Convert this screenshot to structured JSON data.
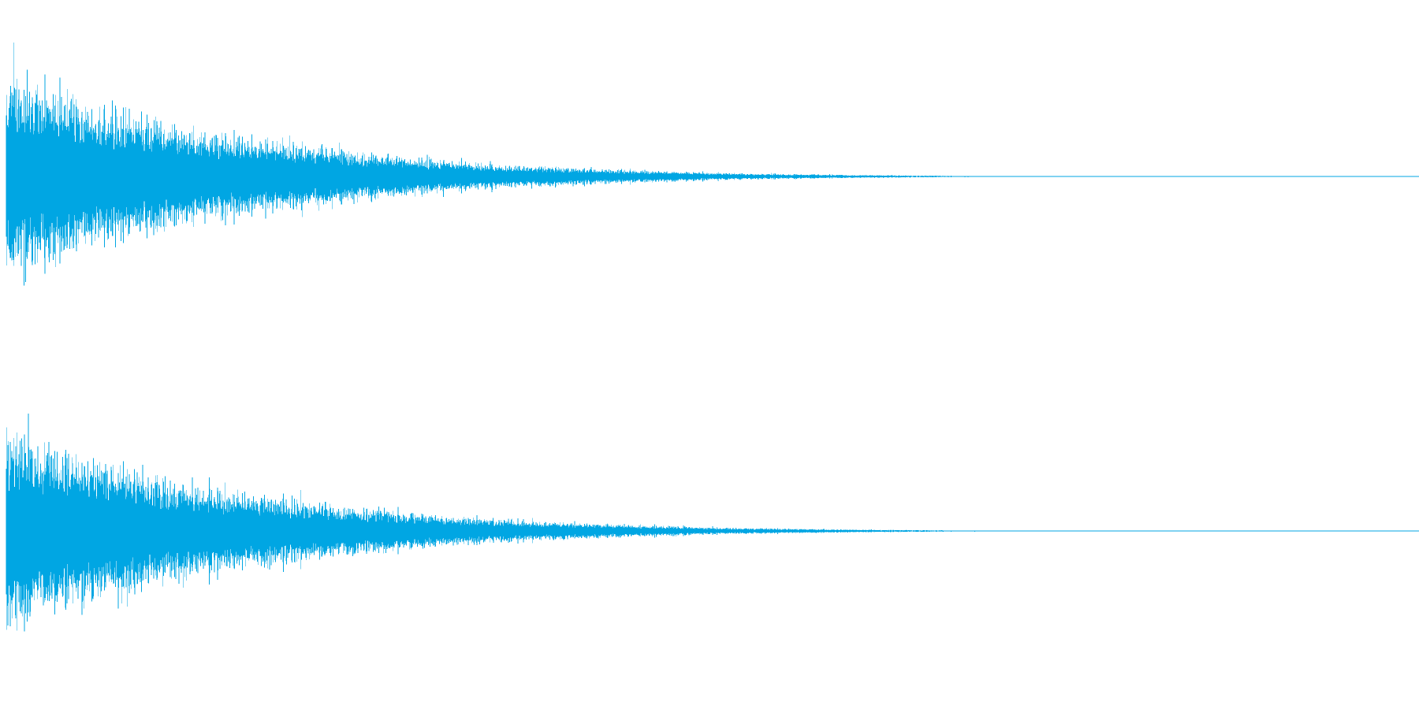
{
  "chart_data": {
    "type": "line",
    "title": "",
    "xlabel": "",
    "ylabel": "",
    "grid": false,
    "legend": "none",
    "colors": {
      "waveform": "#00a6e3",
      "background": "#ffffff"
    },
    "series": [
      {
        "channel": 1,
        "ylim": [
          -1,
          1
        ],
        "envelope": {
          "x": [
            0.0,
            0.01,
            0.02,
            0.04,
            0.06,
            0.08,
            0.1,
            0.12,
            0.15,
            0.2,
            0.25,
            0.3,
            0.35,
            0.4,
            0.45,
            0.5,
            0.55,
            0.6,
            0.65,
            0.7,
            0.72,
            0.74,
            0.76,
            1.0
          ],
          "y": [
            0.95,
            0.92,
            0.84,
            0.76,
            0.69,
            0.62,
            0.54,
            0.47,
            0.4,
            0.31,
            0.23,
            0.16,
            0.11,
            0.08,
            0.055,
            0.035,
            0.022,
            0.014,
            0.008,
            0.004,
            0.003,
            0.002,
            0.0,
            0.0
          ]
        }
      },
      {
        "channel": 2,
        "ylim": [
          -1,
          1
        ],
        "envelope": {
          "x": [
            0.0,
            0.01,
            0.02,
            0.04,
            0.06,
            0.08,
            0.1,
            0.12,
            0.15,
            0.2,
            0.25,
            0.3,
            0.35,
            0.4,
            0.45,
            0.5,
            0.55,
            0.6,
            0.65,
            0.7,
            0.72,
            0.74,
            0.76,
            1.0
          ],
          "y": [
            0.96,
            0.9,
            0.83,
            0.75,
            0.68,
            0.61,
            0.53,
            0.46,
            0.39,
            0.3,
            0.22,
            0.15,
            0.105,
            0.075,
            0.052,
            0.033,
            0.021,
            0.013,
            0.008,
            0.004,
            0.003,
            0.002,
            0.0,
            0.0
          ]
        }
      }
    ]
  }
}
